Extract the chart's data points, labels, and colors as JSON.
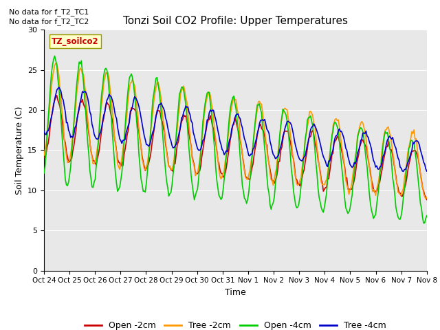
{
  "title": "Tonzi Soil CO2 Profile: Upper Temperatures",
  "ylabel": "Soil Temperature (C)",
  "xlabel": "Time",
  "no_data_text": [
    "No data for f_T2_TC1",
    "No data for f_T2_TC2"
  ],
  "legend_label": "TZ_soilco2",
  "ylim": [
    0,
    30
  ],
  "xlim": [
    0,
    360
  ],
  "yticks": [
    0,
    5,
    10,
    15,
    20,
    25,
    30
  ],
  "xtick_labels": [
    "Oct 24",
    "Oct 25",
    "Oct 26",
    "Oct 27",
    "Oct 28",
    "Oct 29",
    "Oct 30",
    "Oct 31",
    "Nov 1",
    "Nov 2",
    "Nov 3",
    "Nov 4",
    "Nov 5",
    "Nov 6",
    "Nov 7",
    "Nov 8"
  ],
  "colors": {
    "open_2cm": "#cc0000",
    "tree_2cm": "#ff9900",
    "open_4cm": "#00cc00",
    "tree_4cm": "#0000cc"
  },
  "legend_entries": [
    "Open -2cm",
    "Tree -2cm",
    "Open -4cm",
    "Tree -4cm"
  ],
  "fig_bgcolor": "#ffffff",
  "ax_bgcolor": "#e8e8e8",
  "grid_color": "#ffffff"
}
